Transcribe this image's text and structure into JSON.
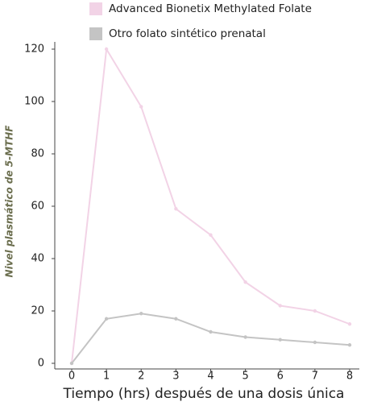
{
  "chart_data": {
    "type": "line",
    "x_label": "Tiempo (hrs) después de una dosis única",
    "y_label": "Nivel plasmático de 5-MTHF",
    "x": [
      0,
      1,
      2,
      3,
      4,
      5,
      6,
      7,
      8
    ],
    "series": [
      {
        "name": "Advanced Bionetix Methylated Folate",
        "color": "#f2d3e6",
        "values": [
          0,
          120,
          98,
          59,
          49,
          31,
          22,
          20,
          15
        ]
      },
      {
        "name": "Otro folato sintético prenatal",
        "color": "#c4c4c4",
        "values": [
          0,
          17,
          19,
          17,
          12,
          10,
          9,
          8,
          7
        ]
      }
    ],
    "xlim": [
      0,
      8
    ],
    "ylim": [
      0,
      120
    ],
    "xticks": [
      0,
      1,
      2,
      3,
      4,
      5,
      6,
      7,
      8
    ],
    "yticks": [
      0,
      20,
      40,
      60,
      80,
      100,
      120
    ],
    "grid": false,
    "legend": "top"
  }
}
